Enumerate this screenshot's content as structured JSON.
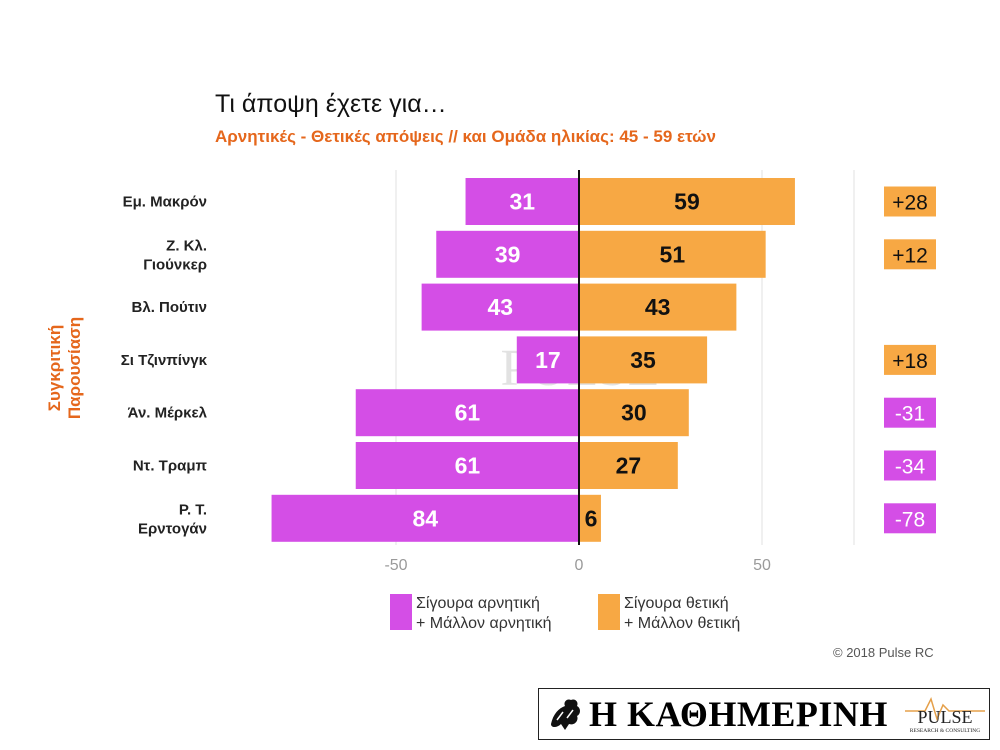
{
  "title": "Τι άποψη έχετε για…",
  "subtitle": "Αρνητικές - Θετικές απόψεις // και Ομάδα ηλικίας: 45 - 59 ετών",
  "side_label": "Συγκριτική Παρουσίαση",
  "chart_data": {
    "type": "bar",
    "orientation": "horizontal-diverging",
    "categories": [
      [
        "Εμ. Μακρόν"
      ],
      [
        "Ζ. Κλ.",
        "Γιούνκερ"
      ],
      [
        "Βλ. Πούτιν"
      ],
      [
        "Σι Τζινπίνγκ"
      ],
      [
        "Άν. Μέρκελ"
      ],
      [
        "Ντ. Τραμπ"
      ],
      [
        "Ρ. Τ.",
        "Ερντογάν"
      ]
    ],
    "series": [
      {
        "name": "Σίγουρα αρνητική + Μάλλον αρνητική",
        "values": [
          31,
          39,
          43,
          17,
          61,
          61,
          84
        ],
        "color": "#d44ee6"
      },
      {
        "name": "Σίγουρα θετική + Μάλλον θετική",
        "values": [
          59,
          51,
          43,
          35,
          30,
          27,
          6
        ],
        "color": "#f7a844"
      }
    ],
    "differences": [
      "+28",
      "+12",
      "",
      "+18",
      "-31",
      "-34",
      "-78"
    ],
    "x_ticks": [
      -50,
      0,
      50
    ],
    "x_tick_labels": [
      "-50",
      "0",
      "50"
    ],
    "xlim": [
      -85,
      75
    ],
    "grid": true
  },
  "legend": {
    "negative": [
      "Σίγουρα αρνητική",
      "+ Μάλλον αρνητική"
    ],
    "positive": [
      "Σίγουρα θετική",
      "+ Μάλλον θετική"
    ]
  },
  "watermark": {
    "main": "PULSE",
    "sub": "RESEARCH & CONSULTING"
  },
  "copyright": "© 2018 Pulse RC",
  "footer": {
    "newspaper": "Η ΚΑΘΗΜΕΡΙΝΗ",
    "brand": "PULSE",
    "brand_sub": "RESEARCH & CONSULTING"
  },
  "colors": {
    "negative": "#d44ee6",
    "positive": "#f7a844",
    "accent": "#e5671c"
  }
}
